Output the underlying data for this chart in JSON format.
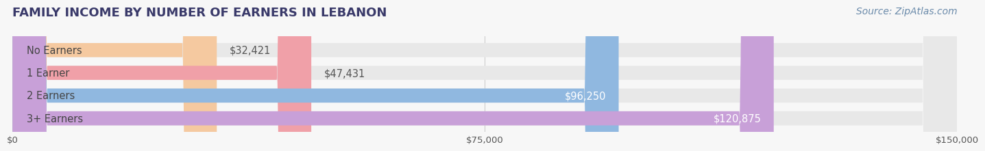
{
  "title": "FAMILY INCOME BY NUMBER OF EARNERS IN LEBANON",
  "source": "Source: ZipAtlas.com",
  "categories": [
    "No Earners",
    "1 Earner",
    "2 Earners",
    "3+ Earners"
  ],
  "values": [
    32421,
    47431,
    96250,
    120875
  ],
  "bar_colors": [
    "#f5c9a0",
    "#f0a0a8",
    "#90b8e0",
    "#c8a0d8"
  ],
  "label_colors": [
    "#555555",
    "#555555",
    "#ffffff",
    "#ffffff"
  ],
  "xlim": [
    0,
    150000
  ],
  "xticks": [
    0,
    75000,
    150000
  ],
  "xtick_labels": [
    "$0",
    "$75,000",
    "$150,000"
  ],
  "background_color": "#f7f7f7",
  "title_color": "#3a3a6a",
  "title_fontsize": 13,
  "bar_height": 0.62,
  "value_fontsize": 10.5,
  "label_fontsize": 10.5,
  "source_fontsize": 10,
  "source_color": "#6a8aaa"
}
